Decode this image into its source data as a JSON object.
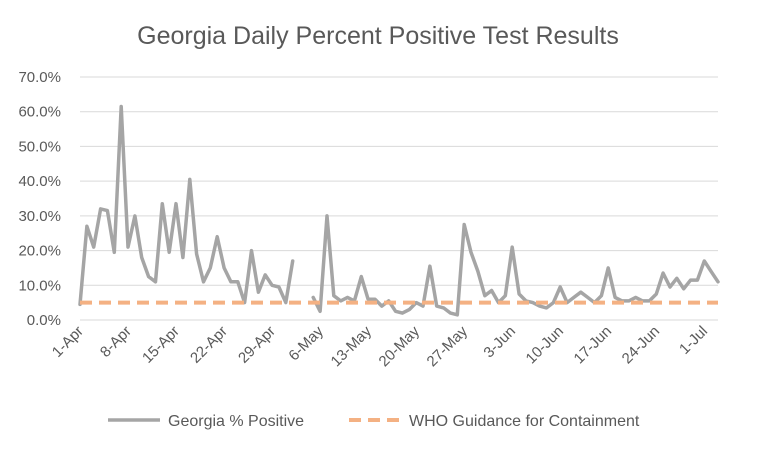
{
  "chart_data": {
    "type": "line",
    "title": "Georgia Daily Percent Positive Test Results",
    "xlabel": "",
    "ylabel": "",
    "ylim": [
      0,
      70
    ],
    "yticks": [
      "0.0%",
      "10.0%",
      "20.0%",
      "30.0%",
      "40.0%",
      "50.0%",
      "60.0%",
      "70.0%"
    ],
    "grid": true,
    "legend_position": "bottom",
    "x_tick_labels": [
      "1-Apr",
      "8-Apr",
      "15-Apr",
      "22-Apr",
      "29-Apr",
      "6-May",
      "13-May",
      "20-May",
      "27-May",
      "3-Jun",
      "10-Jun",
      "17-Jun",
      "24-Jun",
      "1-Jul"
    ],
    "x_start": "1-Apr",
    "x_end": "1-Jul",
    "series": [
      {
        "name": "Georgia % Positive",
        "color": "#a5a5a5",
        "style": "solid",
        "values": [
          4.5,
          27,
          21,
          32,
          31.5,
          19.5,
          61.5,
          21,
          30,
          18,
          12.5,
          11,
          33.5,
          19.5,
          33.5,
          18,
          40.5,
          19,
          11,
          15,
          24,
          15,
          11,
          11,
          5,
          20,
          8,
          13,
          10,
          9.5,
          5,
          17,
          null,
          null,
          6.5,
          2.5,
          30,
          7,
          5.5,
          6.5,
          5.5,
          12.5,
          6,
          6,
          4,
          5.5,
          2.5,
          2,
          3,
          5,
          4,
          15.5,
          4,
          3.5,
          2,
          1.5,
          27.5,
          19.5,
          14,
          7,
          8.5,
          5,
          7,
          21,
          7.5,
          5.5,
          5,
          4,
          3.5,
          5,
          9.5,
          5,
          6.5,
          8,
          6.5,
          5,
          7,
          15,
          6.5,
          5.5,
          5.5,
          6.5,
          5.5,
          5.5,
          7.5,
          13.5,
          9.5,
          12,
          9,
          11.5,
          11.5,
          17,
          14,
          11
        ]
      },
      {
        "name": "WHO Guidance for Containment",
        "color": "#f4b183",
        "style": "dashed",
        "values": [
          5,
          5
        ]
      }
    ]
  }
}
